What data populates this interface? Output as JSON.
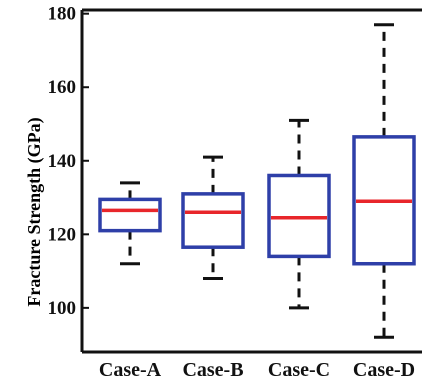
{
  "chart_data": {
    "type": "box",
    "ylabel": "Fracture Strength (GPa)",
    "xlabel": "",
    "ylim": [
      88,
      181
    ],
    "yticks": [
      100,
      120,
      140,
      160,
      180
    ],
    "categories": [
      "Case-A",
      "Case-B",
      "Case-C",
      "Case-D"
    ],
    "boxes": [
      {
        "whisker_low": 112,
        "q1": 121,
        "median": 126.5,
        "q3": 129.5,
        "whisker_high": 134
      },
      {
        "whisker_low": 108,
        "q1": 116.5,
        "median": 126,
        "q3": 131,
        "whisker_high": 141
      },
      {
        "whisker_low": 100,
        "q1": 114,
        "median": 124.5,
        "q3": 136,
        "whisker_high": 151
      },
      {
        "whisker_low": 92,
        "q1": 112,
        "median": 129,
        "q3": 146.5,
        "whisker_high": 177
      }
    ],
    "colors": {
      "box": "#2e3fa8",
      "median": "#e8262b",
      "whisker": "#111111",
      "axis": "#111111"
    },
    "grid": false
  }
}
